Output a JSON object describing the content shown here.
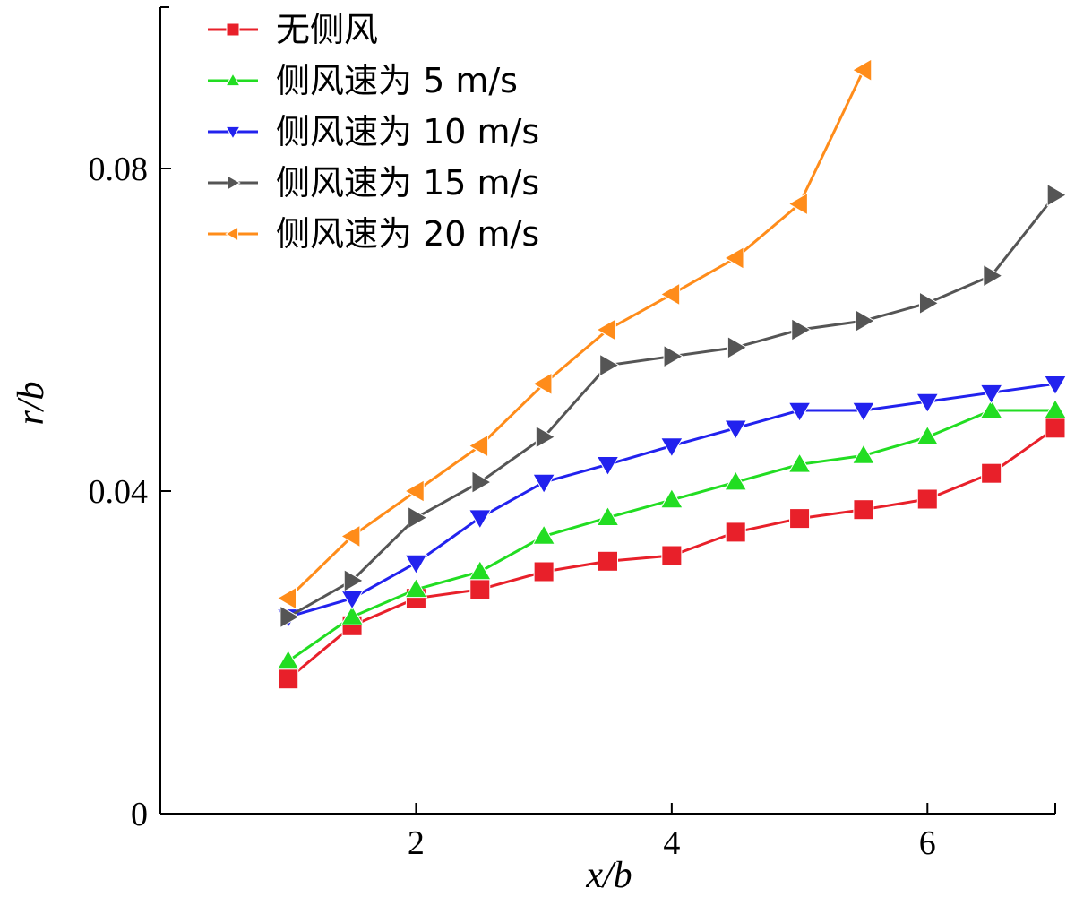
{
  "chart_data": {
    "type": "line",
    "xlabel": "x/b",
    "ylabel": "r/b",
    "xlim": [
      0,
      7
    ],
    "ylim": [
      0,
      0.1
    ],
    "x_ticks": [
      2,
      4,
      6
    ],
    "x_tick_labels": [
      "2",
      "4",
      "6"
    ],
    "y_ticks": [
      0,
      0.04,
      0.08
    ],
    "y_tick_labels": [
      "0",
      "0.04",
      "0.08"
    ],
    "grid": false,
    "legend_position": "top-left",
    "series": [
      {
        "name": "无侧风",
        "color": "#e8202a",
        "marker": "square",
        "x": [
          1,
          1.5,
          2,
          2.5,
          3,
          3.5,
          4,
          4.5,
          5,
          5.5,
          6,
          6.5,
          7
        ],
        "y": [
          0.0167,
          0.0233,
          0.0267,
          0.0278,
          0.03,
          0.0313,
          0.032,
          0.0349,
          0.0366,
          0.0377,
          0.039,
          0.0422,
          0.0478
        ]
      },
      {
        "name": "侧风速为 5 m/s",
        "color": "#22dd22",
        "marker": "triangle-up",
        "x": [
          1,
          1.5,
          2,
          2.5,
          3,
          3.5,
          4,
          4.5,
          5,
          5.5,
          6,
          6.5,
          7
        ],
        "y": [
          0.0189,
          0.0244,
          0.0278,
          0.03,
          0.0344,
          0.0367,
          0.0389,
          0.0411,
          0.0433,
          0.0444,
          0.0467,
          0.05,
          0.05
        ]
      },
      {
        "name": "侧风速为 10 m/s",
        "color": "#2222ee",
        "marker": "triangle-down",
        "x": [
          1,
          1.5,
          2,
          2.5,
          3,
          3.5,
          4,
          4.5,
          5,
          5.5,
          6,
          6.5,
          7
        ],
        "y": [
          0.0244,
          0.0267,
          0.0311,
          0.0367,
          0.0411,
          0.0433,
          0.0456,
          0.0478,
          0.05,
          0.05,
          0.0511,
          0.0522,
          0.0533
        ]
      },
      {
        "name": "侧风速为 15 m/s",
        "color": "#555555",
        "marker": "triangle-right",
        "x": [
          1,
          1.5,
          2,
          2.5,
          3,
          3.5,
          4,
          4.5,
          5,
          5.5,
          6,
          6.5,
          7
        ],
        "y": [
          0.0244,
          0.0289,
          0.0367,
          0.0411,
          0.0467,
          0.0556,
          0.0567,
          0.0578,
          0.06,
          0.0611,
          0.0633,
          0.0667,
          0.0767
        ]
      },
      {
        "name": "侧风速为 20 m/s",
        "color": "#ff8c1a",
        "marker": "triangle-left",
        "x": [
          1,
          1.5,
          2,
          2.5,
          3,
          3.5,
          4,
          4.5,
          5,
          5.5
        ],
        "y": [
          0.0267,
          0.0344,
          0.04,
          0.0456,
          0.0533,
          0.06,
          0.0644,
          0.0689,
          0.0756,
          0.0922
        ]
      }
    ]
  }
}
